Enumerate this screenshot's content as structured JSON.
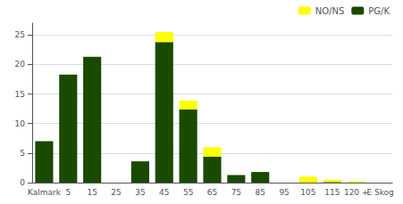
{
  "chart_data": {
    "type": "bar",
    "stacked": true,
    "categories": [
      "Kalmark",
      "5",
      "15",
      "25",
      "35",
      "45",
      "55",
      "65",
      "75",
      "85",
      "95",
      "105",
      "115",
      "120 +",
      "E Skog"
    ],
    "series": [
      {
        "name": "PG/K",
        "color": "#1a4a00",
        "values": [
          7.0,
          18.3,
          21.3,
          0.0,
          3.6,
          23.8,
          12.4,
          4.4,
          1.3,
          1.8,
          0.0,
          0.0,
          0.1,
          0.0,
          0.0
        ]
      },
      {
        "name": "NO/NS",
        "color": "#ffff00",
        "values": [
          0.0,
          0.0,
          0.0,
          0.0,
          0.0,
          1.7,
          1.5,
          1.6,
          0.0,
          0.0,
          0.0,
          1.0,
          0.4,
          0.2,
          0.0
        ]
      }
    ],
    "ylim": [
      0,
      27
    ],
    "yticks": [
      0,
      5,
      10,
      15,
      20,
      25
    ],
    "grid": true,
    "legend": "upper right"
  }
}
